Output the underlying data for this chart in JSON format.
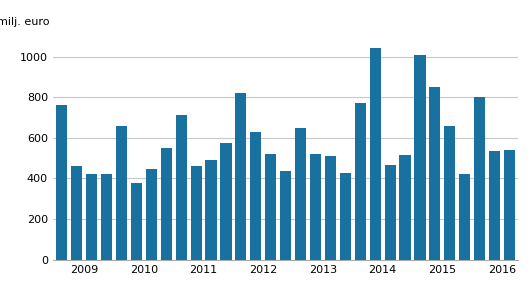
{
  "values": [
    760,
    460,
    420,
    420,
    660,
    380,
    445,
    550,
    710,
    460,
    490,
    575,
    820,
    630,
    520,
    435,
    650,
    520,
    510,
    425,
    770,
    1040,
    465,
    515,
    1010,
    850,
    660,
    420,
    800,
    535,
    540
  ],
  "year_labels": [
    "2009",
    "2010",
    "2011",
    "2012",
    "2013",
    "2014",
    "2015",
    "2016"
  ],
  "year_x_positions": [
    1.5,
    5.5,
    9.5,
    13.5,
    17.5,
    21.5,
    25.5,
    29.5
  ],
  "ylabel": "milj. euro",
  "bar_color": "#1971a0",
  "ylim": [
    0,
    1100
  ],
  "yticks": [
    0,
    200,
    400,
    600,
    800,
    1000
  ],
  "background_color": "#ffffff",
  "grid_color": "#c8c8c8"
}
